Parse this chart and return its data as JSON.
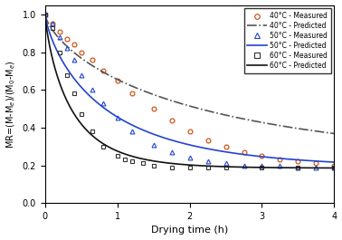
{
  "title": "",
  "xlabel": "Drying time (h)",
  "ylabel": "MR=(M-M$_e$)/(M$_0$-M$_e$)",
  "xlim": [
    0,
    4
  ],
  "ylim": [
    0.0,
    1.05
  ],
  "xticks": [
    0,
    1,
    2,
    3,
    4
  ],
  "yticks": [
    0.0,
    0.2,
    0.4,
    0.6,
    0.8,
    1.0
  ],
  "measured_40": {
    "t": [
      0,
      0.1,
      0.2,
      0.3,
      0.4,
      0.5,
      0.65,
      0.8,
      1.0,
      1.2,
      1.5,
      1.75,
      2.0,
      2.25,
      2.5,
      2.75,
      3.0,
      3.25,
      3.5,
      3.75,
      4.0
    ],
    "mr": [
      1.0,
      0.95,
      0.91,
      0.87,
      0.84,
      0.8,
      0.76,
      0.7,
      0.65,
      0.58,
      0.5,
      0.44,
      0.38,
      0.33,
      0.3,
      0.27,
      0.25,
      0.23,
      0.22,
      0.21,
      0.2
    ],
    "color": "#cc4400",
    "marker": "o",
    "label": "40°C - Measured"
  },
  "predicted_40": {
    "k": 0.55,
    "n": 0.72,
    "c": 0.185,
    "color": "#555555",
    "linestyle": "-.",
    "label": "40°C - Predicted"
  },
  "measured_50": {
    "t": [
      0,
      0.1,
      0.2,
      0.3,
      0.4,
      0.5,
      0.65,
      0.8,
      1.0,
      1.2,
      1.5,
      1.75,
      2.0,
      2.25,
      2.5,
      2.75,
      3.0,
      3.25,
      3.5,
      3.75,
      4.0
    ],
    "mr": [
      1.0,
      0.95,
      0.88,
      0.82,
      0.76,
      0.68,
      0.6,
      0.53,
      0.45,
      0.38,
      0.31,
      0.27,
      0.24,
      0.22,
      0.21,
      0.2,
      0.2,
      0.2,
      0.19,
      0.19,
      0.19
    ],
    "color": "#2244cc",
    "marker": "^",
    "label": "50°C - Measured"
  },
  "predicted_50": {
    "k": 1.1,
    "n": 0.78,
    "c": 0.185,
    "color": "#2244cc",
    "linestyle": "-",
    "label": "50°C - Predicted"
  },
  "measured_60": {
    "t": [
      0,
      0.1,
      0.2,
      0.3,
      0.4,
      0.5,
      0.65,
      0.8,
      1.0,
      1.1,
      1.2,
      1.35,
      1.5,
      1.75,
      2.0,
      2.25,
      2.5,
      3.0,
      3.5,
      4.0
    ],
    "mr": [
      1.0,
      0.93,
      0.8,
      0.68,
      0.58,
      0.47,
      0.38,
      0.3,
      0.25,
      0.23,
      0.22,
      0.21,
      0.2,
      0.19,
      0.19,
      0.19,
      0.19,
      0.19,
      0.19,
      0.19
    ],
    "color": "#333333",
    "marker": "s",
    "label": "60°C - Measured"
  },
  "predicted_60": {
    "k": 2.2,
    "n": 0.82,
    "c": 0.185,
    "color": "#111111",
    "linestyle": "-",
    "label": "60°C - Predicted"
  }
}
